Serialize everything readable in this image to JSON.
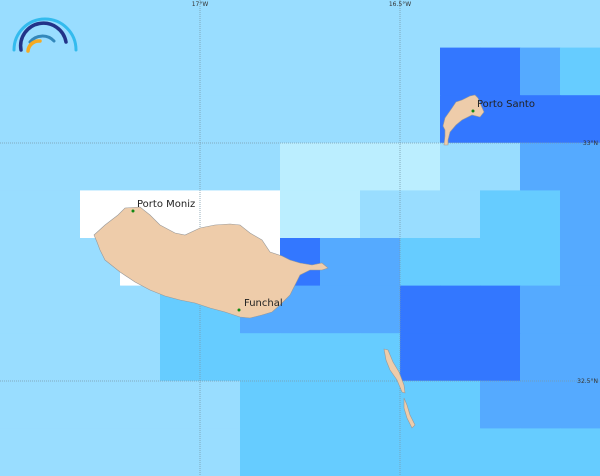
{
  "colors": {
    "L": "#99ddff",
    "V": "#bbeeff",
    "W": "#ffffff",
    "C": "#66ccff",
    "B": "#55aaff",
    "D": "#3377ff",
    "land": "#eeccaa",
    "town": "#118811"
  },
  "grid": [
    "LLLLLLLLLLLLLLL",
    "LLLLLLLLLLLDDBC",
    "LLLLLLLLLLLDDDD",
    "LLLLLLLVVVVLLBB",
    "LLWWWWWVVLLLCCB",
    "LLLWWWWDBBCCCCB",
    "LLLLCCBBBBDDDBB",
    "LLLLCCCCCCDDDBB",
    "LLLLLLCCCCCCBBB",
    "LLLLLLCCCCCCCCC"
  ],
  "axes": {
    "lon_labels": [
      "17°W",
      "16.5°W"
    ],
    "lat_labels": [
      "33°N",
      "32.5°N"
    ]
  },
  "places": [
    {
      "name": "Porto Santo"
    },
    {
      "name": "Porto Moniz"
    },
    {
      "name": "Funchal"
    }
  ],
  "logo": "wave-arcs-logo"
}
